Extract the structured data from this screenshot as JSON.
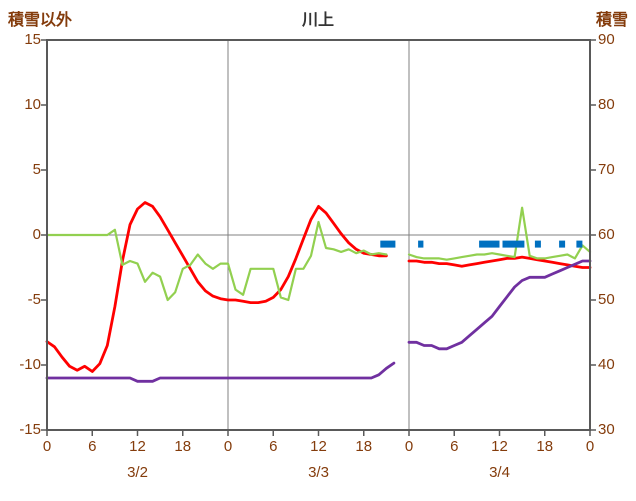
{
  "header": {
    "left_label": "積雪以外",
    "title": "川上",
    "right_label": "積雪"
  },
  "chart_data": {
    "type": "line",
    "title": "川上",
    "left_axis": {
      "label": "積雪以外",
      "min": -15,
      "max": 15,
      "ticks": [
        15,
        10,
        5,
        0,
        -5,
        -10,
        -15
      ]
    },
    "right_axis": {
      "label": "積雪",
      "min": 30,
      "max": 90,
      "ticks": [
        90,
        80,
        70,
        60,
        50,
        40,
        30
      ]
    },
    "x_axis": {
      "total_hours": 72,
      "tick_hours": [
        0,
        6,
        12,
        18,
        24,
        30,
        36,
        42,
        48,
        54,
        60,
        66,
        72
      ],
      "tick_labels": [
        "0",
        "6",
        "12",
        "18",
        "0",
        "6",
        "12",
        "18",
        "0",
        "6",
        "12",
        "18",
        "0"
      ],
      "date_labels": [
        {
          "label": "3/2",
          "hour": 12
        },
        {
          "label": "3/3",
          "hour": 36
        },
        {
          "label": "3/4",
          "hour": 60
        }
      ],
      "day_boundary_hours": [
        24,
        48
      ]
    },
    "grid": {
      "border_color": "#595959",
      "line_color": "#808080"
    },
    "series": [
      {
        "name": "temperature-red",
        "axis": "left",
        "color": "#FF0000",
        "width": 2.8,
        "x_start": 0,
        "x_step": 1,
        "values": [
          -8.2,
          -8.6,
          -9.4,
          -10.1,
          -10.4,
          -10.1,
          -10.5,
          -9.9,
          -8.5,
          -5.5,
          -2.0,
          0.8,
          2.0,
          2.5,
          2.2,
          1.4,
          0.4,
          -0.6,
          -1.6,
          -2.6,
          -3.6,
          -4.3,
          -4.7,
          -4.9,
          -5.0,
          -5.0,
          -5.1,
          -5.2,
          -5.2,
          -5.1,
          -4.8,
          -4.2,
          -3.2,
          -1.8,
          -0.3,
          1.2,
          2.2,
          1.7,
          0.9,
          0.1,
          -0.6,
          -1.1,
          -1.4,
          -1.5,
          -1.6,
          -1.6,
          null,
          null,
          -2.0,
          -2.0,
          -2.1,
          -2.1,
          -2.2,
          -2.2,
          -2.3,
          -2.4,
          -2.3,
          -2.2,
          -2.1,
          -2.0,
          -1.9,
          -1.8,
          -1.8,
          -1.7,
          -1.8,
          -1.9,
          -2.0,
          -2.1,
          -2.2,
          -2.3,
          -2.4,
          -2.5,
          -2.5
        ]
      },
      {
        "name": "temperature-green",
        "axis": "left",
        "color": "#92D050",
        "width": 2.2,
        "x_start": 0,
        "x_step": 1,
        "values": [
          0,
          0,
          0,
          0,
          0,
          0,
          0,
          0,
          0,
          0.4,
          -2.3,
          -2.0,
          -2.2,
          -3.6,
          -2.9,
          -3.2,
          -5.0,
          -4.4,
          -2.6,
          -2.3,
          -1.5,
          -2.2,
          -2.6,
          -2.2,
          -2.2,
          -4.2,
          -4.6,
          -2.6,
          -2.6,
          -2.6,
          -2.6,
          -4.8,
          -5.0,
          -2.6,
          -2.6,
          -1.6,
          1.0,
          -1.0,
          -1.1,
          -1.3,
          -1.1,
          -1.4,
          -1.2,
          -1.5,
          -1.4,
          -1.5,
          null,
          null,
          -1.5,
          -1.7,
          -1.8,
          -1.8,
          -1.8,
          -1.9,
          -1.8,
          -1.7,
          -1.6,
          -1.5,
          -1.5,
          -1.4,
          -1.5,
          -1.6,
          -1.7,
          2.1,
          -1.6,
          -1.8,
          -1.8,
          -1.7,
          -1.6,
          -1.5,
          -1.8,
          -0.8,
          -1.3
        ]
      },
      {
        "name": "snow-depth-purple",
        "axis": "right",
        "color": "#7030A0",
        "width": 2.8,
        "x_start": 0,
        "x_step": 1,
        "values": [
          38,
          38,
          38,
          38,
          38,
          38,
          38,
          38,
          38,
          38,
          38,
          38,
          37.5,
          37.5,
          37.5,
          38,
          38,
          38,
          38,
          38,
          38,
          38,
          38,
          38,
          38,
          38,
          38,
          38,
          38,
          38,
          38,
          38,
          38,
          38,
          38,
          38,
          38,
          38,
          38,
          38,
          38,
          38,
          38,
          38,
          38.5,
          39.5,
          40.3,
          null,
          43.5,
          43.5,
          43.0,
          43.0,
          42.5,
          42.5,
          43.0,
          43.5,
          44.5,
          45.5,
          46.5,
          47.5,
          49.0,
          50.5,
          52.0,
          53.0,
          53.5,
          53.5,
          53.5,
          54.0,
          54.5,
          55.0,
          55.5,
          56.0,
          56.0
        ]
      }
    ],
    "bars": {
      "name": "precipitation-blue",
      "axis": "left",
      "color": "#0070C0",
      "value": -0.7,
      "thickness": 7,
      "segments": [
        [
          44.2,
          46.2
        ],
        [
          49.2,
          49.9
        ],
        [
          57.3,
          60.0
        ],
        [
          60.4,
          63.3
        ],
        [
          64.7,
          65.5
        ],
        [
          67.9,
          68.7
        ],
        [
          70.2,
          71.0
        ]
      ]
    }
  }
}
